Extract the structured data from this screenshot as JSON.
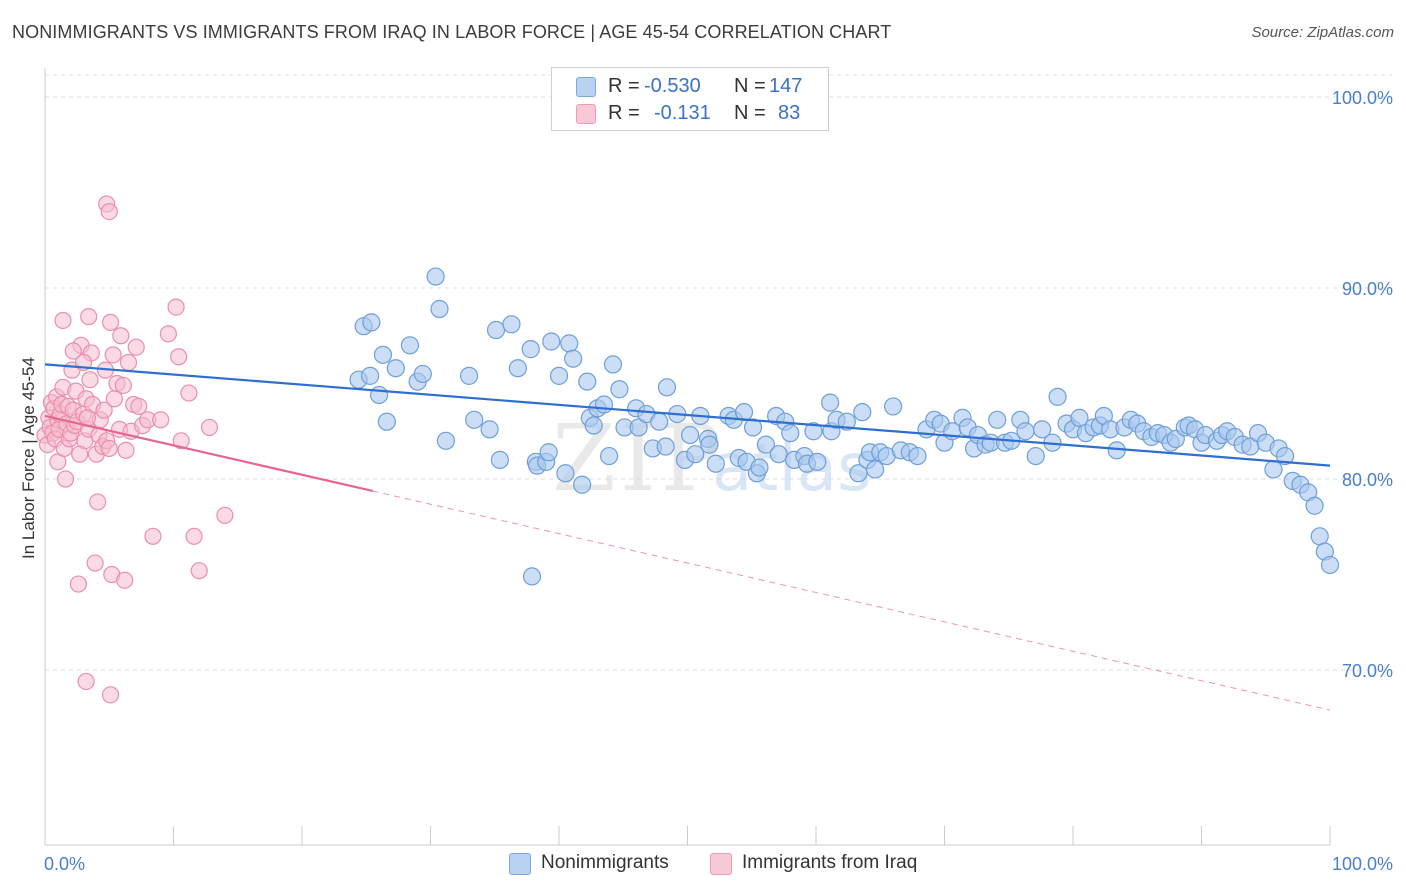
{
  "title": "NONIMMIGRANTS VS IMMIGRANTS FROM IRAQ IN LABOR FORCE | AGE 45-54 CORRELATION CHART",
  "source": "Source: ZipAtlas.com",
  "watermark": {
    "zip": "ZIP",
    "atlas": "atlas"
  },
  "legend": {
    "r_label": "R =",
    "n_label": "N =",
    "rows": [
      {
        "r": "-0.530",
        "n": "147"
      },
      {
        "r": "-0.131",
        "n": "83"
      }
    ]
  },
  "colors": {
    "blue_fill": "#a9c8ee",
    "blue_stroke": "#6f9fd8",
    "blue_line": "#2e6fd0",
    "pink_fill": "#f6bccd",
    "pink_stroke": "#ea8fab",
    "pink_line": "#e56790",
    "tick_text": "#4a7fc9",
    "grid": "#dddddd"
  },
  "chart_data": {
    "type": "scatter",
    "title": "NONIMMIGRANTS VS IMMIGRANTS FROM IRAQ IN LABOR FORCE | AGE 45-54 CORRELATION CHART",
    "xlabel": "",
    "ylabel": "In Labor Force | Age 45-54",
    "xlim": [
      0,
      100
    ],
    "ylim": [
      60,
      104
    ],
    "x_tick_labels": [
      "0.0%",
      "100.0%"
    ],
    "y_ticks": [
      100,
      90,
      80,
      70
    ],
    "y_tick_labels": [
      "100.0%",
      "90.0%",
      "80.0%",
      "70.0%"
    ],
    "grid": true,
    "legend_position": "top-center",
    "series": [
      {
        "name": "Nonimmigrants",
        "r": -0.53,
        "n": 147,
        "trend": {
          "x": [
            0,
            100
          ],
          "y": [
            86.0,
            80.7
          ],
          "style": "solid"
        },
        "points": [
          [
            24.4,
            85.2
          ],
          [
            24.8,
            88.0
          ],
          [
            25.4,
            88.2
          ],
          [
            25.3,
            85.4
          ],
          [
            26.0,
            84.4
          ],
          [
            26.3,
            86.5
          ],
          [
            26.6,
            83.0
          ],
          [
            27.3,
            85.8
          ],
          [
            28.4,
            87.0
          ],
          [
            29.0,
            85.1
          ],
          [
            29.4,
            85.5
          ],
          [
            30.4,
            90.6
          ],
          [
            30.7,
            88.9
          ],
          [
            31.2,
            82.0
          ],
          [
            33.0,
            85.4
          ],
          [
            33.4,
            83.1
          ],
          [
            34.6,
            82.6
          ],
          [
            35.1,
            87.8
          ],
          [
            35.4,
            81.0
          ],
          [
            36.3,
            88.1
          ],
          [
            36.8,
            85.8
          ],
          [
            37.8,
            86.8
          ],
          [
            37.9,
            74.9
          ],
          [
            38.2,
            80.9
          ],
          [
            38.3,
            80.7
          ],
          [
            39.0,
            80.9
          ],
          [
            39.2,
            81.4
          ],
          [
            39.4,
            87.2
          ],
          [
            40.0,
            85.4
          ],
          [
            40.5,
            80.3
          ],
          [
            40.8,
            87.1
          ],
          [
            41.1,
            86.3
          ],
          [
            41.8,
            79.7
          ],
          [
            42.2,
            85.1
          ],
          [
            42.4,
            83.2
          ],
          [
            42.7,
            82.8
          ],
          [
            43.0,
            83.7
          ],
          [
            43.5,
            83.9
          ],
          [
            43.9,
            81.2
          ],
          [
            44.2,
            86.0
          ],
          [
            44.7,
            84.7
          ],
          [
            45.1,
            82.7
          ],
          [
            46.0,
            83.7
          ],
          [
            46.2,
            82.7
          ],
          [
            46.8,
            83.4
          ],
          [
            47.3,
            81.6
          ],
          [
            47.8,
            83.0
          ],
          [
            48.3,
            81.7
          ],
          [
            48.4,
            84.8
          ],
          [
            49.2,
            83.4
          ],
          [
            49.8,
            81.0
          ],
          [
            50.2,
            82.3
          ],
          [
            50.6,
            81.3
          ],
          [
            51.0,
            83.3
          ],
          [
            51.6,
            82.1
          ],
          [
            51.7,
            81.8
          ],
          [
            52.2,
            80.8
          ],
          [
            53.2,
            83.3
          ],
          [
            53.6,
            83.1
          ],
          [
            54.0,
            81.1
          ],
          [
            54.4,
            83.5
          ],
          [
            54.6,
            80.9
          ],
          [
            55.1,
            82.7
          ],
          [
            55.4,
            80.3
          ],
          [
            55.6,
            80.6
          ],
          [
            56.1,
            81.8
          ],
          [
            56.9,
            83.3
          ],
          [
            57.1,
            81.3
          ],
          [
            57.6,
            83.0
          ],
          [
            58.0,
            82.4
          ],
          [
            58.3,
            81.0
          ],
          [
            59.1,
            81.2
          ],
          [
            59.3,
            80.8
          ],
          [
            59.8,
            82.5
          ],
          [
            60.1,
            80.9
          ],
          [
            61.1,
            84.0
          ],
          [
            61.2,
            82.5
          ],
          [
            61.6,
            83.1
          ],
          [
            62.4,
            83.0
          ],
          [
            63.3,
            80.3
          ],
          [
            63.6,
            83.5
          ],
          [
            64.0,
            81.0
          ],
          [
            64.2,
            81.4
          ],
          [
            64.6,
            80.5
          ],
          [
            65.0,
            81.4
          ],
          [
            65.5,
            81.2
          ],
          [
            66.0,
            83.8
          ],
          [
            66.6,
            81.5
          ],
          [
            67.3,
            81.4
          ],
          [
            67.9,
            81.2
          ],
          [
            68.6,
            82.6
          ],
          [
            69.2,
            83.1
          ],
          [
            69.7,
            82.9
          ],
          [
            70.0,
            81.9
          ],
          [
            70.6,
            82.5
          ],
          [
            71.4,
            83.2
          ],
          [
            71.8,
            82.7
          ],
          [
            72.3,
            81.6
          ],
          [
            72.6,
            82.3
          ],
          [
            73.2,
            81.8
          ],
          [
            73.6,
            81.9
          ],
          [
            74.1,
            83.1
          ],
          [
            74.7,
            81.9
          ],
          [
            75.2,
            82.0
          ],
          [
            75.9,
            83.1
          ],
          [
            76.3,
            82.5
          ],
          [
            77.1,
            81.2
          ],
          [
            77.6,
            82.6
          ],
          [
            78.4,
            81.9
          ],
          [
            78.8,
            84.3
          ],
          [
            79.5,
            82.9
          ],
          [
            80.0,
            82.6
          ],
          [
            80.5,
            83.2
          ],
          [
            81.0,
            82.4
          ],
          [
            81.6,
            82.7
          ],
          [
            82.1,
            82.8
          ],
          [
            82.4,
            83.3
          ],
          [
            82.9,
            82.6
          ],
          [
            83.4,
            81.5
          ],
          [
            84.0,
            82.7
          ],
          [
            84.5,
            83.1
          ],
          [
            85.0,
            82.9
          ],
          [
            85.5,
            82.5
          ],
          [
            86.1,
            82.2
          ],
          [
            86.6,
            82.4
          ],
          [
            87.1,
            82.3
          ],
          [
            87.6,
            81.9
          ],
          [
            88.0,
            82.1
          ],
          [
            88.7,
            82.7
          ],
          [
            89.0,
            82.8
          ],
          [
            89.5,
            82.6
          ],
          [
            90.0,
            81.9
          ],
          [
            90.3,
            82.3
          ],
          [
            91.2,
            82.0
          ],
          [
            91.6,
            82.3
          ],
          [
            92.0,
            82.5
          ],
          [
            92.6,
            82.2
          ],
          [
            93.2,
            81.8
          ],
          [
            93.8,
            81.7
          ],
          [
            94.4,
            82.4
          ],
          [
            95.0,
            81.9
          ],
          [
            95.6,
            80.5
          ],
          [
            96.0,
            81.6
          ],
          [
            96.5,
            81.2
          ],
          [
            97.1,
            79.9
          ],
          [
            97.7,
            79.7
          ],
          [
            98.3,
            79.3
          ],
          [
            98.8,
            78.6
          ],
          [
            99.2,
            77.0
          ],
          [
            99.6,
            76.2
          ],
          [
            100.0,
            75.5
          ]
        ]
      },
      {
        "name": "Immigrants from Iraq",
        "r": -0.131,
        "n": 83,
        "trend": {
          "x": [
            0,
            100
          ],
          "y": [
            83.3,
            67.9
          ],
          "solid_until_x": 25.5
        },
        "points": [
          [
            0.0,
            82.3
          ],
          [
            0.2,
            81.8
          ],
          [
            0.3,
            83.2
          ],
          [
            0.4,
            82.7
          ],
          [
            0.5,
            84.0
          ],
          [
            0.6,
            82.4
          ],
          [
            0.7,
            83.7
          ],
          [
            0.8,
            82.1
          ],
          [
            0.9,
            84.3
          ],
          [
            1.0,
            83.1
          ],
          [
            1.0,
            80.9
          ],
          [
            1.1,
            82.6
          ],
          [
            1.2,
            83.4
          ],
          [
            1.3,
            83.9
          ],
          [
            1.4,
            84.8
          ],
          [
            1.5,
            81.6
          ],
          [
            1.6,
            80.0
          ],
          [
            1.7,
            82.9
          ],
          [
            1.8,
            83.8
          ],
          [
            1.9,
            82.1
          ],
          [
            2.0,
            82.4
          ],
          [
            2.1,
            85.7
          ],
          [
            2.2,
            83.6
          ],
          [
            2.3,
            82.8
          ],
          [
            2.4,
            84.6
          ],
          [
            2.5,
            83.0
          ],
          [
            2.6,
            74.5
          ],
          [
            2.8,
            87.0
          ],
          [
            3.0,
            83.4
          ],
          [
            3.1,
            82.0
          ],
          [
            3.2,
            84.2
          ],
          [
            3.4,
            82.6
          ],
          [
            3.4,
            88.5
          ],
          [
            3.5,
            85.2
          ],
          [
            3.6,
            86.6
          ],
          [
            3.7,
            83.9
          ],
          [
            3.9,
            75.6
          ],
          [
            4.0,
            81.3
          ],
          [
            4.1,
            78.8
          ],
          [
            4.2,
            82.3
          ],
          [
            4.3,
            83.1
          ],
          [
            4.5,
            81.7
          ],
          [
            4.6,
            83.6
          ],
          [
            4.7,
            85.7
          ],
          [
            4.8,
            82.0
          ],
          [
            5.0,
            81.6
          ],
          [
            5.1,
            88.2
          ],
          [
            5.2,
            75.0
          ],
          [
            5.3,
            86.5
          ],
          [
            5.4,
            84.2
          ],
          [
            5.6,
            85.0
          ],
          [
            5.8,
            82.6
          ],
          [
            5.9,
            87.5
          ],
          [
            6.1,
            84.9
          ],
          [
            6.2,
            74.7
          ],
          [
            6.3,
            81.5
          ],
          [
            6.5,
            86.1
          ],
          [
            6.7,
            82.5
          ],
          [
            6.9,
            83.9
          ],
          [
            7.1,
            86.9
          ],
          [
            7.3,
            83.8
          ],
          [
            7.6,
            82.8
          ],
          [
            8.0,
            83.1
          ],
          [
            8.4,
            77.0
          ],
          [
            9.0,
            83.1
          ],
          [
            9.6,
            87.6
          ],
          [
            10.2,
            89.0
          ],
          [
            10.4,
            86.4
          ],
          [
            10.6,
            82.0
          ],
          [
            11.2,
            84.5
          ],
          [
            11.6,
            77.0
          ],
          [
            12.0,
            75.2
          ],
          [
            12.8,
            82.7
          ],
          [
            14.0,
            78.1
          ],
          [
            3.2,
            69.4
          ],
          [
            5.1,
            68.7
          ],
          [
            4.8,
            94.4
          ],
          [
            5.0,
            94.0
          ],
          [
            3.0,
            86.1
          ],
          [
            1.4,
            88.3
          ],
          [
            2.2,
            86.7
          ],
          [
            3.3,
            83.2
          ],
          [
            2.7,
            81.3
          ]
        ]
      }
    ]
  }
}
